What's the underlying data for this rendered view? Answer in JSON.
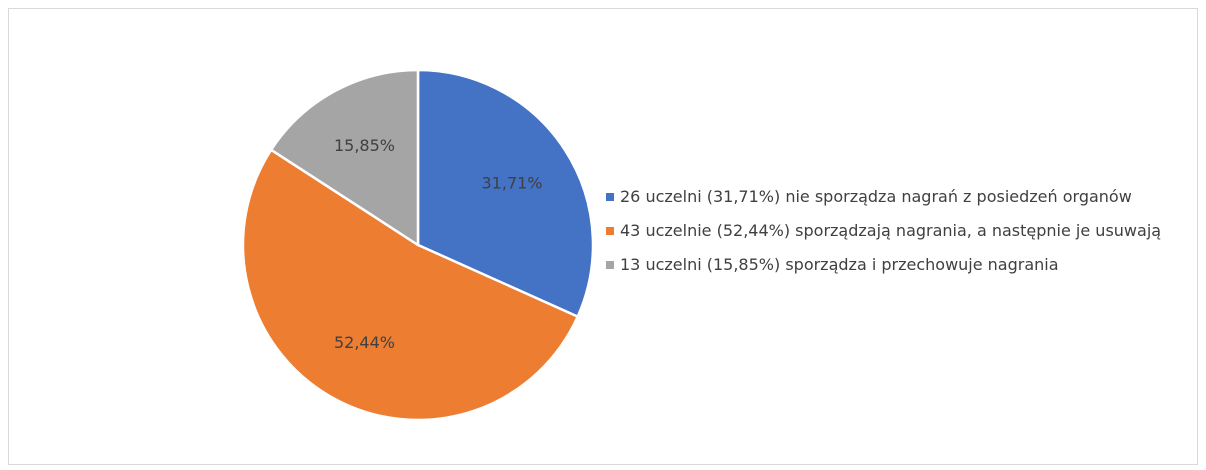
{
  "chart_data": {
    "type": "pie",
    "categories": [
      "26 uczelni (31,71%) nie sporządza nagrań z posiedzeń organów",
      "43 uczelnie (52,44%) sporządzają nagrania, a następnie je usuwają",
      "13 uczelni (15,85%) sporządza i przechowuje nagrania"
    ],
    "values": [
      31.71,
      52.44,
      15.85
    ],
    "value_labels": [
      "31,71%",
      "52,44%",
      "15,85%"
    ],
    "colors": [
      "#4472c4",
      "#ed7d31",
      "#a5a5a5"
    ],
    "legend": "right"
  }
}
